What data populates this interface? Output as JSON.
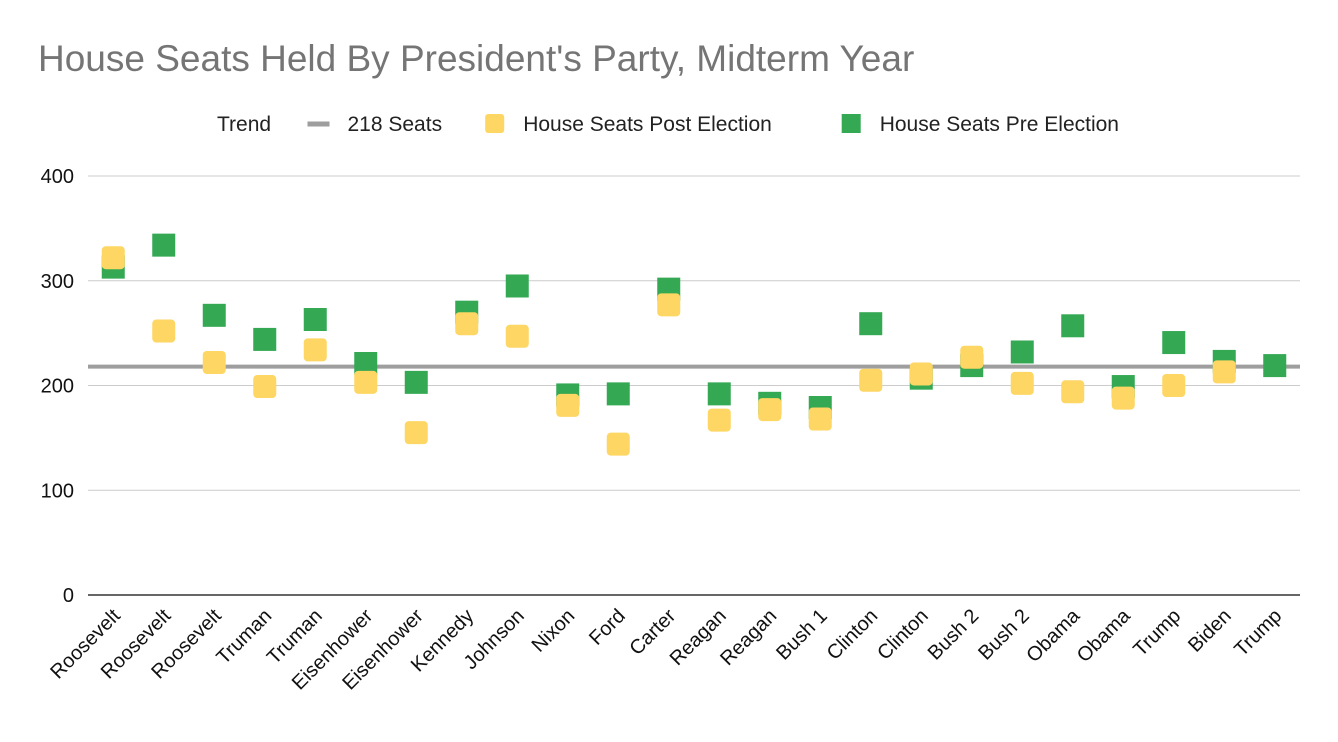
{
  "chart_data": {
    "type": "scatter",
    "title": "House Seats Held By President's Party, Midterm Year",
    "xlabel": "",
    "ylabel": "",
    "ylim": [
      0,
      400
    ],
    "yticks": [
      0,
      100,
      200,
      300,
      400
    ],
    "grid": true,
    "legend_position": "top",
    "categories": [
      "Roosevelt",
      "Roosevelt",
      "Roosevelt",
      "Truman",
      "Truman",
      "Eisenhower",
      "Eisenhower",
      "Kennedy",
      "Johnson",
      "Nixon",
      "Ford",
      "Carter",
      "Reagan",
      "Reagan",
      "Bush 1",
      "Clinton",
      "Clinton",
      "Bush 2",
      "Bush 2",
      "Obama",
      "Obama",
      "Trump",
      "Biden",
      "Trump"
    ],
    "legend": [
      {
        "name": "Trend",
        "kind": "none",
        "color": ""
      },
      {
        "name": "218 Seats",
        "kind": "line",
        "color": "#9e9e9e"
      },
      {
        "name": "House Seats Post Election",
        "kind": "square",
        "color": "#fdd663"
      },
      {
        "name": "House Seats Pre Election",
        "kind": "square",
        "color": "#34a853"
      }
    ],
    "reference_line": {
      "name": "218 Seats",
      "value": 218,
      "color": "#9e9e9e"
    },
    "series": [
      {
        "name": "House Seats Pre Election",
        "color": "#34a853",
        "values": [
          313,
          334,
          267,
          244,
          263,
          221,
          203,
          270,
          295,
          191,
          192,
          292,
          192,
          183,
          179,
          259,
          207,
          219,
          232,
          257,
          199,
          241,
          223,
          219
        ]
      },
      {
        "name": "House Seats Post Election",
        "color": "#fdd663",
        "values": [
          322,
          252,
          222,
          199,
          234,
          203,
          155,
          259,
          247,
          181,
          144,
          277,
          167,
          177,
          168,
          205,
          211,
          227,
          202,
          194,
          188,
          200,
          213,
          null
        ]
      }
    ]
  }
}
